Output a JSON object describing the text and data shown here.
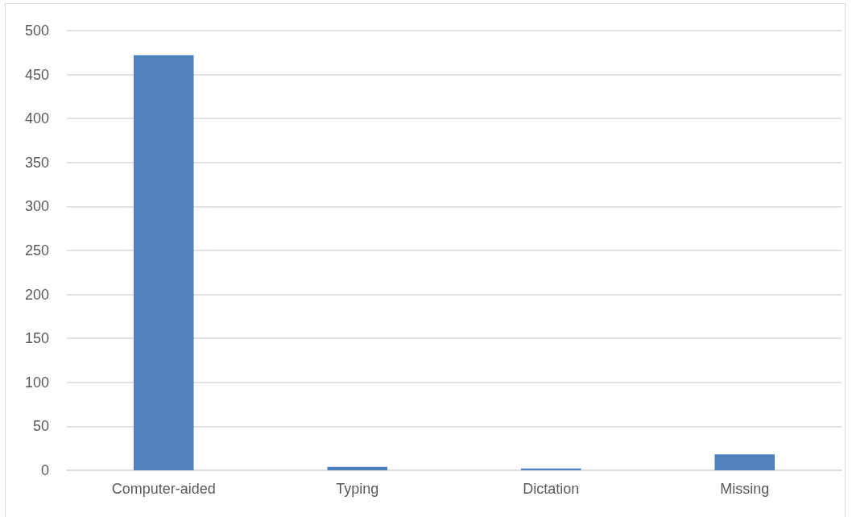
{
  "chart_data": {
    "type": "bar",
    "categories": [
      "Computer-aided",
      "Typing",
      "Dictation",
      "Missing"
    ],
    "values": [
      472,
      4,
      2,
      18
    ],
    "color": "#4f81bd",
    "ylim": [
      0,
      500
    ],
    "yticks": [
      0,
      50,
      100,
      150,
      200,
      250,
      300,
      350,
      400,
      450,
      500
    ],
    "grid": true
  }
}
